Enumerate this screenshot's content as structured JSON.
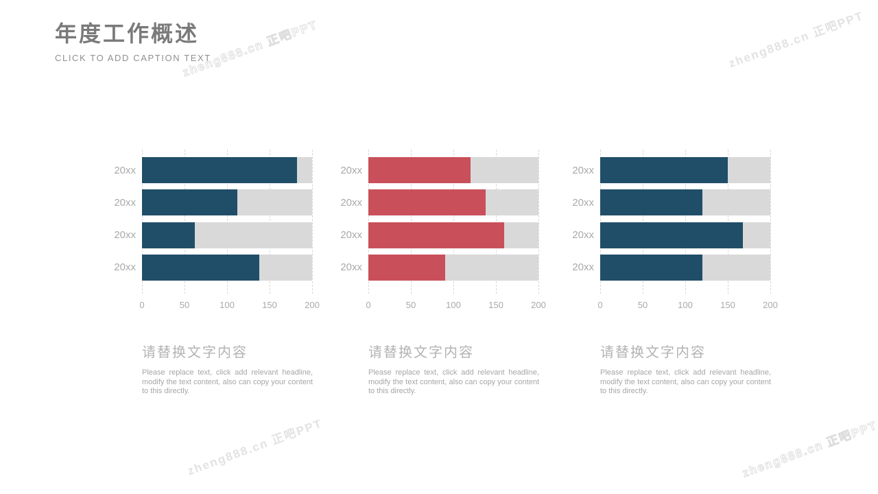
{
  "header": {
    "title": "年度工作概述",
    "subtitle": "CLICK TO ADD CAPTION TEXT"
  },
  "watermark": {
    "text": "zheng888.cn 正吧PPT"
  },
  "colors": {
    "navy": "#204E68",
    "red": "#C9505A",
    "track_gray": "#D9D9D9",
    "gridline_gray": "#D6D6D6",
    "label_gray": "#A9A9A9",
    "title_gray": "#7A7A7A"
  },
  "chart_data": [
    {
      "type": "bar",
      "orientation": "horizontal",
      "title": "",
      "categories": [
        "20xx",
        "20xx",
        "20xx",
        "20xx"
      ],
      "values": [
        182,
        112,
        62,
        138
      ],
      "xlim": [
        0,
        200
      ],
      "xticks": [
        "0",
        "50",
        "100",
        "150",
        "200"
      ],
      "grid": true,
      "legend": false,
      "bar_color": "#204E68",
      "track_color": "#D9D9D9"
    },
    {
      "type": "bar",
      "orientation": "horizontal",
      "title": "",
      "categories": [
        "20xx",
        "20xx",
        "20xx",
        "20xx"
      ],
      "values": [
        120,
        138,
        160,
        90
      ],
      "xlim": [
        0,
        200
      ],
      "xticks": [
        "0",
        "50",
        "100",
        "150",
        "200"
      ],
      "grid": true,
      "legend": false,
      "bar_color": "#C9505A",
      "track_color": "#D9D9D9"
    },
    {
      "type": "bar",
      "orientation": "horizontal",
      "title": "",
      "categories": [
        "20xx",
        "20xx",
        "20xx",
        "20xx"
      ],
      "values": [
        150,
        120,
        168,
        120
      ],
      "xlim": [
        0,
        200
      ],
      "xticks": [
        "0",
        "50",
        "100",
        "150",
        "200"
      ],
      "grid": true,
      "legend": false,
      "bar_color": "#204E68",
      "track_color": "#D9D9D9"
    }
  ],
  "sections": [
    {
      "heading": "请替换文字内容",
      "body": "Please replace text, click add relevant headline, modify the text content, also can copy your content to this directly."
    },
    {
      "heading": "请替换文字内容",
      "body": "Please replace text, click add relevant headline, modify the text content, also can copy your content to this directly."
    },
    {
      "heading": "请替换文字内容",
      "body": "Please replace text, click add relevant headline, modify the text content, also can copy your content to this directly."
    }
  ]
}
